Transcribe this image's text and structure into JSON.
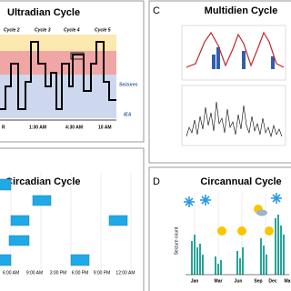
{
  "panels": {
    "ultradian": {
      "title": "Ultradian Cycle",
      "cycles": [
        "Cycle 2",
        "Cycle 3",
        "Cycle 4",
        "Cycle 5"
      ],
      "seizures": "Seizures",
      "iea": "IEA",
      "time_labels": [
        "R",
        "1:30 AM",
        "4:30 AM",
        "10 AM"
      ]
    },
    "multidien": {
      "letter": "C",
      "title": "Multidien Cycle"
    },
    "circadian": {
      "title": "Circadian Cycle",
      "time_labels": [
        "6:00 AM",
        "9:00 AM",
        "3:00 PM",
        "6:00 PM",
        "9:00 PM",
        "12:00 AM"
      ]
    },
    "circannual": {
      "letter": "D",
      "title": "Circannual Cycle",
      "y_label": "Seizure count",
      "months": [
        "Jan",
        "Mar",
        "Jun",
        "Sep",
        "Dec",
        "Ma"
      ]
    }
  }
}
